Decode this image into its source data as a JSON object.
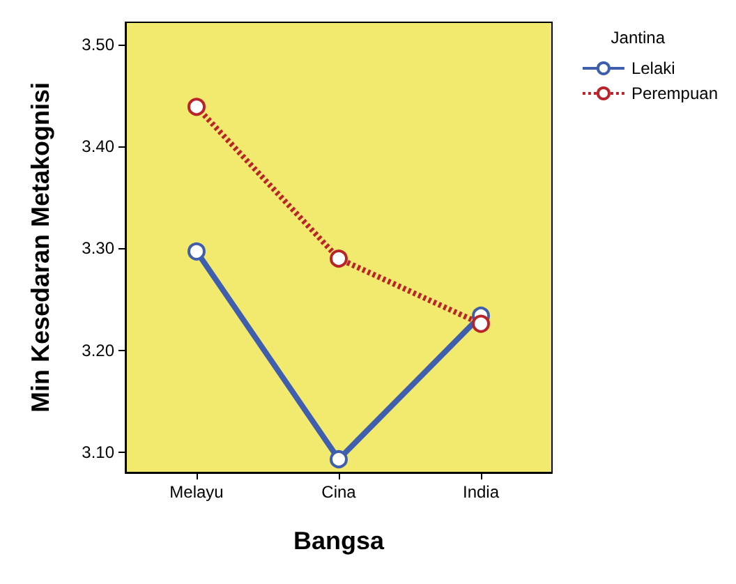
{
  "chart_data": {
    "type": "line",
    "xlabel": "Bangsa",
    "ylabel": "Min Kesedaran Metakognisi",
    "legend_title": "Jantina",
    "categories": [
      "Melayu",
      "Cina",
      "India"
    ],
    "series": [
      {
        "name": "Lelaki",
        "color": "#3f5fae",
        "values": [
          3.297,
          3.093,
          3.234
        ],
        "line_style": "solid"
      },
      {
        "name": "Perempuan",
        "color": "#b8242a",
        "values": [
          3.439,
          3.29,
          3.226
        ],
        "line_style": "dotted"
      }
    ],
    "ylim": [
      3.08,
      3.522
    ],
    "yticks": [
      {
        "value": 3.1,
        "label": "3.10"
      },
      {
        "value": 3.2,
        "label": "3.20"
      },
      {
        "value": 3.3,
        "label": "3.30"
      },
      {
        "value": 3.4,
        "label": "3.40"
      },
      {
        "value": 3.5,
        "label": "3.50"
      }
    ],
    "grid": false,
    "legend": "top right",
    "marker": "circle"
  }
}
